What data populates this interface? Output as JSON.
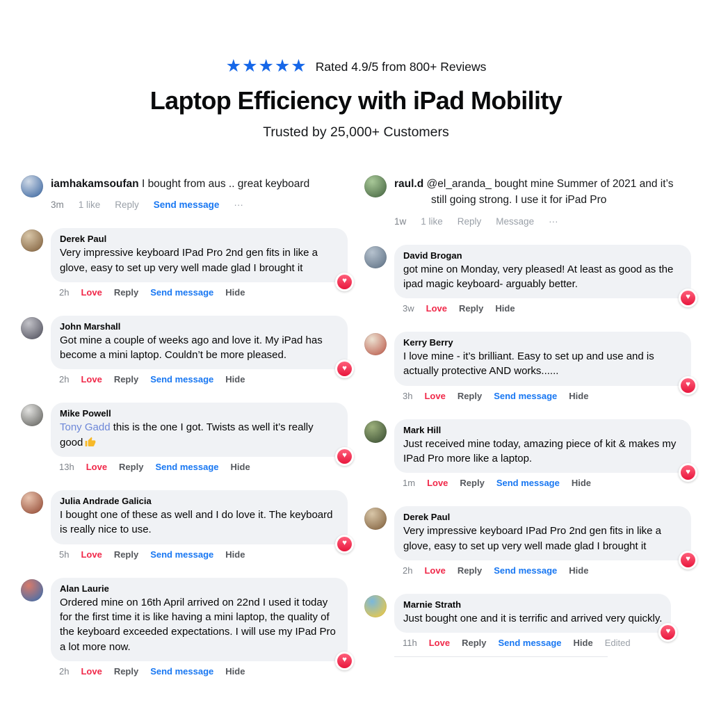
{
  "header": {
    "stars": "★★★★★",
    "rating_text": "Rated 4.9/5 from 800+ Reviews",
    "title": "Laptop Efficiency with iPad Mobility",
    "subtitle": "Trusted by 25,000+ Customers"
  },
  "colors": {
    "star_blue": "#1667e8",
    "link_blue": "#1877f2",
    "love_red": "#f02849",
    "mention_blue": "#6d87d8",
    "bubble_bg": "#f0f2f5",
    "badge_red_top": "#ff5f7a",
    "badge_red_bottom": "#e8173d",
    "thumb_yellow": "#f7b928"
  },
  "columns": [
    {
      "comments": [
        {
          "style": "plain",
          "name": "iamhakamsoufan",
          "text": "I bought from aus .. great keyboard",
          "avatar": [
            "#cfd9e6",
            "#4a72a8"
          ],
          "loved": false,
          "meta": [
            {
              "label": "3m",
              "style": "time"
            },
            {
              "label": "1 like",
              "style": "muted"
            },
            {
              "label": "Reply",
              "style": "muted"
            },
            {
              "label": "Send message",
              "style": "send"
            },
            {
              "label": "···",
              "style": "muted"
            }
          ]
        },
        {
          "style": "bubble",
          "name": "Derek Paul",
          "text": "Very impressive keyboard IPad Pro 2nd gen fits in like a glove, easy to set up very well made glad I brought it",
          "avatar": [
            "#d8c6a8",
            "#8a6b48"
          ],
          "loved": true,
          "meta": [
            {
              "label": "2h",
              "style": "time"
            },
            {
              "label": "Love",
              "style": "love"
            },
            {
              "label": "Reply",
              "style": "action"
            },
            {
              "label": "Send message",
              "style": "send"
            },
            {
              "label": "Hide",
              "style": "action"
            }
          ]
        },
        {
          "style": "bubble",
          "name": "John Marshall",
          "text": "Got mine a couple of weeks ago and love it. My iPad has become a mini laptop. Couldn’t be more pleased.",
          "avatar": [
            "#c2c2c8",
            "#5c5c68"
          ],
          "loved": true,
          "meta": [
            {
              "label": "2h",
              "style": "time"
            },
            {
              "label": "Love",
              "style": "love"
            },
            {
              "label": "Reply",
              "style": "action"
            },
            {
              "label": "Send message",
              "style": "send"
            },
            {
              "label": "Hide",
              "style": "action"
            }
          ]
        },
        {
          "style": "bubble",
          "name": "Mike Powell",
          "mention": "Tony Gadd",
          "text": "this is the one I got. Twists as well it’s really good",
          "emoji": "thumbs-up",
          "avatar": [
            "#e2e2e0",
            "#6e6e6a"
          ],
          "loved": true,
          "meta": [
            {
              "label": "13h",
              "style": "time"
            },
            {
              "label": "Love",
              "style": "love"
            },
            {
              "label": "Reply",
              "style": "action"
            },
            {
              "label": "Send message",
              "style": "send"
            },
            {
              "label": "Hide",
              "style": "action"
            }
          ]
        },
        {
          "style": "bubble",
          "name": "Julia Andrade Galicia",
          "text": "I bought one of these as well and I do love it. The keyboard is really nice to use.",
          "avatar": [
            "#e8c3ae",
            "#9c5640"
          ],
          "loved": true,
          "meta": [
            {
              "label": "5h",
              "style": "time"
            },
            {
              "label": "Love",
              "style": "love"
            },
            {
              "label": "Reply",
              "style": "action"
            },
            {
              "label": "Send message",
              "style": "send"
            },
            {
              "label": "Hide",
              "style": "action"
            }
          ]
        },
        {
          "style": "bubble",
          "name": "Alan Laurie",
          "text": "Ordered mine on 16th April arrived on 22nd I used it today for the first time it is like having a mini laptop, the quality of the keyboard exceeded expectations. I will use my IPad Pro a lot more now.",
          "avatar": [
            "#d87a6a",
            "#4a6fa8"
          ],
          "loved": true,
          "meta": [
            {
              "label": "2h",
              "style": "time"
            },
            {
              "label": "Love",
              "style": "love"
            },
            {
              "label": "Reply",
              "style": "action"
            },
            {
              "label": "Send message",
              "style": "send"
            },
            {
              "label": "Hide",
              "style": "action"
            }
          ]
        }
      ]
    },
    {
      "comments": [
        {
          "style": "plain",
          "name": "raul.d",
          "hang": true,
          "text": "@el_aranda_ bought mine Summer of 2021 and it’s still going strong. I use it for iPad Pro",
          "avatar": [
            "#a8c898",
            "#50704a"
          ],
          "loved": false,
          "meta": [
            {
              "label": "1w",
              "style": "time"
            },
            {
              "label": "1 like",
              "style": "muted"
            },
            {
              "label": "Reply",
              "style": "muted"
            },
            {
              "label": "Message",
              "style": "muted"
            },
            {
              "label": "···",
              "style": "muted"
            }
          ]
        },
        {
          "style": "bubble",
          "name": "David Brogan",
          "text": "got mine on Monday, very pleased! At least as good as the ipad magic keyboard- arguably better.",
          "avatar": [
            "#b6c2ce",
            "#67798c"
          ],
          "loved": true,
          "meta": [
            {
              "label": "3w",
              "style": "time"
            },
            {
              "label": "Love",
              "style": "love"
            },
            {
              "label": "Reply",
              "style": "action"
            },
            {
              "label": "Hide",
              "style": "action"
            }
          ]
        },
        {
          "style": "bubble",
          "name": "Kerry Berry",
          "text": "I love mine - it’s brilliant. Easy to set up and use and is actually protective AND works......",
          "avatar": [
            "#ece2d2",
            "#c06858"
          ],
          "loved": true,
          "meta": [
            {
              "label": "3h",
              "style": "time"
            },
            {
              "label": "Love",
              "style": "love"
            },
            {
              "label": "Reply",
              "style": "action"
            },
            {
              "label": "Send message",
              "style": "send"
            },
            {
              "label": "Hide",
              "style": "action"
            }
          ]
        },
        {
          "style": "bubble",
          "name": "Mark Hill",
          "text": "Just received mine today, amazing piece of kit & makes my IPad Pro more like a laptop.",
          "avatar": [
            "#9cb07c",
            "#44583a"
          ],
          "loved": true,
          "meta": [
            {
              "label": "1m",
              "style": "time"
            },
            {
              "label": "Love",
              "style": "love"
            },
            {
              "label": "Reply",
              "style": "action"
            },
            {
              "label": "Send message",
              "style": "send"
            },
            {
              "label": "Hide",
              "style": "action"
            }
          ]
        },
        {
          "style": "bubble",
          "name": "Derek Paul",
          "text": "Very impressive keyboard IPad Pro 2nd gen fits in like a glove, easy to set up very well made glad I brought it",
          "avatar": [
            "#d8c6a8",
            "#8a6b48"
          ],
          "loved": true,
          "meta": [
            {
              "label": "2h",
              "style": "time"
            },
            {
              "label": "Love",
              "style": "love"
            },
            {
              "label": "Reply",
              "style": "action"
            },
            {
              "label": "Send message",
              "style": "send"
            },
            {
              "label": "Hide",
              "style": "action"
            }
          ]
        },
        {
          "style": "bubble",
          "name": "Marnie Strath",
          "text": "Just bought one and it is terrific and arrived very quickly.",
          "avatar": [
            "#7ab8dc",
            "#e8c84a"
          ],
          "loved": true,
          "divider": true,
          "meta": [
            {
              "label": "11h",
              "style": "time"
            },
            {
              "label": "Love",
              "style": "love"
            },
            {
              "label": "Reply",
              "style": "action"
            },
            {
              "label": "Send message",
              "style": "send"
            },
            {
              "label": "Hide",
              "style": "action"
            },
            {
              "label": "Edited",
              "style": "edited"
            }
          ]
        }
      ]
    }
  ]
}
